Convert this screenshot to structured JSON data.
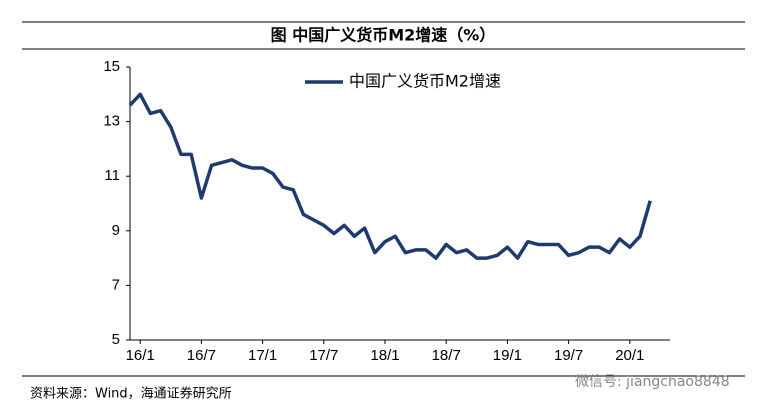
{
  "chart_data": {
    "type": "line",
    "title": "图  中国广义货币M2增速（%）",
    "source": "资料来源：Wind，海通证券研究所",
    "watermark": "微信号: jiangchao8848",
    "categories": [
      null,
      "16/1",
      null,
      null,
      null,
      null,
      null,
      "16/7",
      null,
      null,
      null,
      null,
      null,
      "17/1",
      null,
      null,
      null,
      null,
      null,
      "17/7",
      null,
      null,
      null,
      null,
      null,
      "18/1",
      null,
      null,
      null,
      null,
      null,
      "18/7",
      null,
      null,
      null,
      null,
      null,
      "19/1",
      null,
      null,
      null,
      null,
      null,
      "19/7",
      null,
      null,
      null,
      null,
      null,
      "20/1",
      null,
      null
    ],
    "series": [
      {
        "name": "中国广义货币M2增速",
        "color": "#1f3a6e",
        "values": [
          13.6,
          14.0,
          13.3,
          13.4,
          12.8,
          11.8,
          11.8,
          10.2,
          11.4,
          11.5,
          11.6,
          11.4,
          11.3,
          11.3,
          11.1,
          10.6,
          10.5,
          9.6,
          9.4,
          9.2,
          8.9,
          9.2,
          8.8,
          9.1,
          8.2,
          8.6,
          8.8,
          8.2,
          8.3,
          8.3,
          8.0,
          8.5,
          8.2,
          8.3,
          8.0,
          8.0,
          8.1,
          8.4,
          8.0,
          8.6,
          8.5,
          8.5,
          8.5,
          8.1,
          8.2,
          8.4,
          8.4,
          8.2,
          8.7,
          8.4,
          8.8,
          10.1
        ]
      }
    ],
    "ylim": [
      5,
      15
    ],
    "yticks": [
      5,
      7,
      9,
      11,
      13,
      15
    ],
    "legend": "top"
  }
}
